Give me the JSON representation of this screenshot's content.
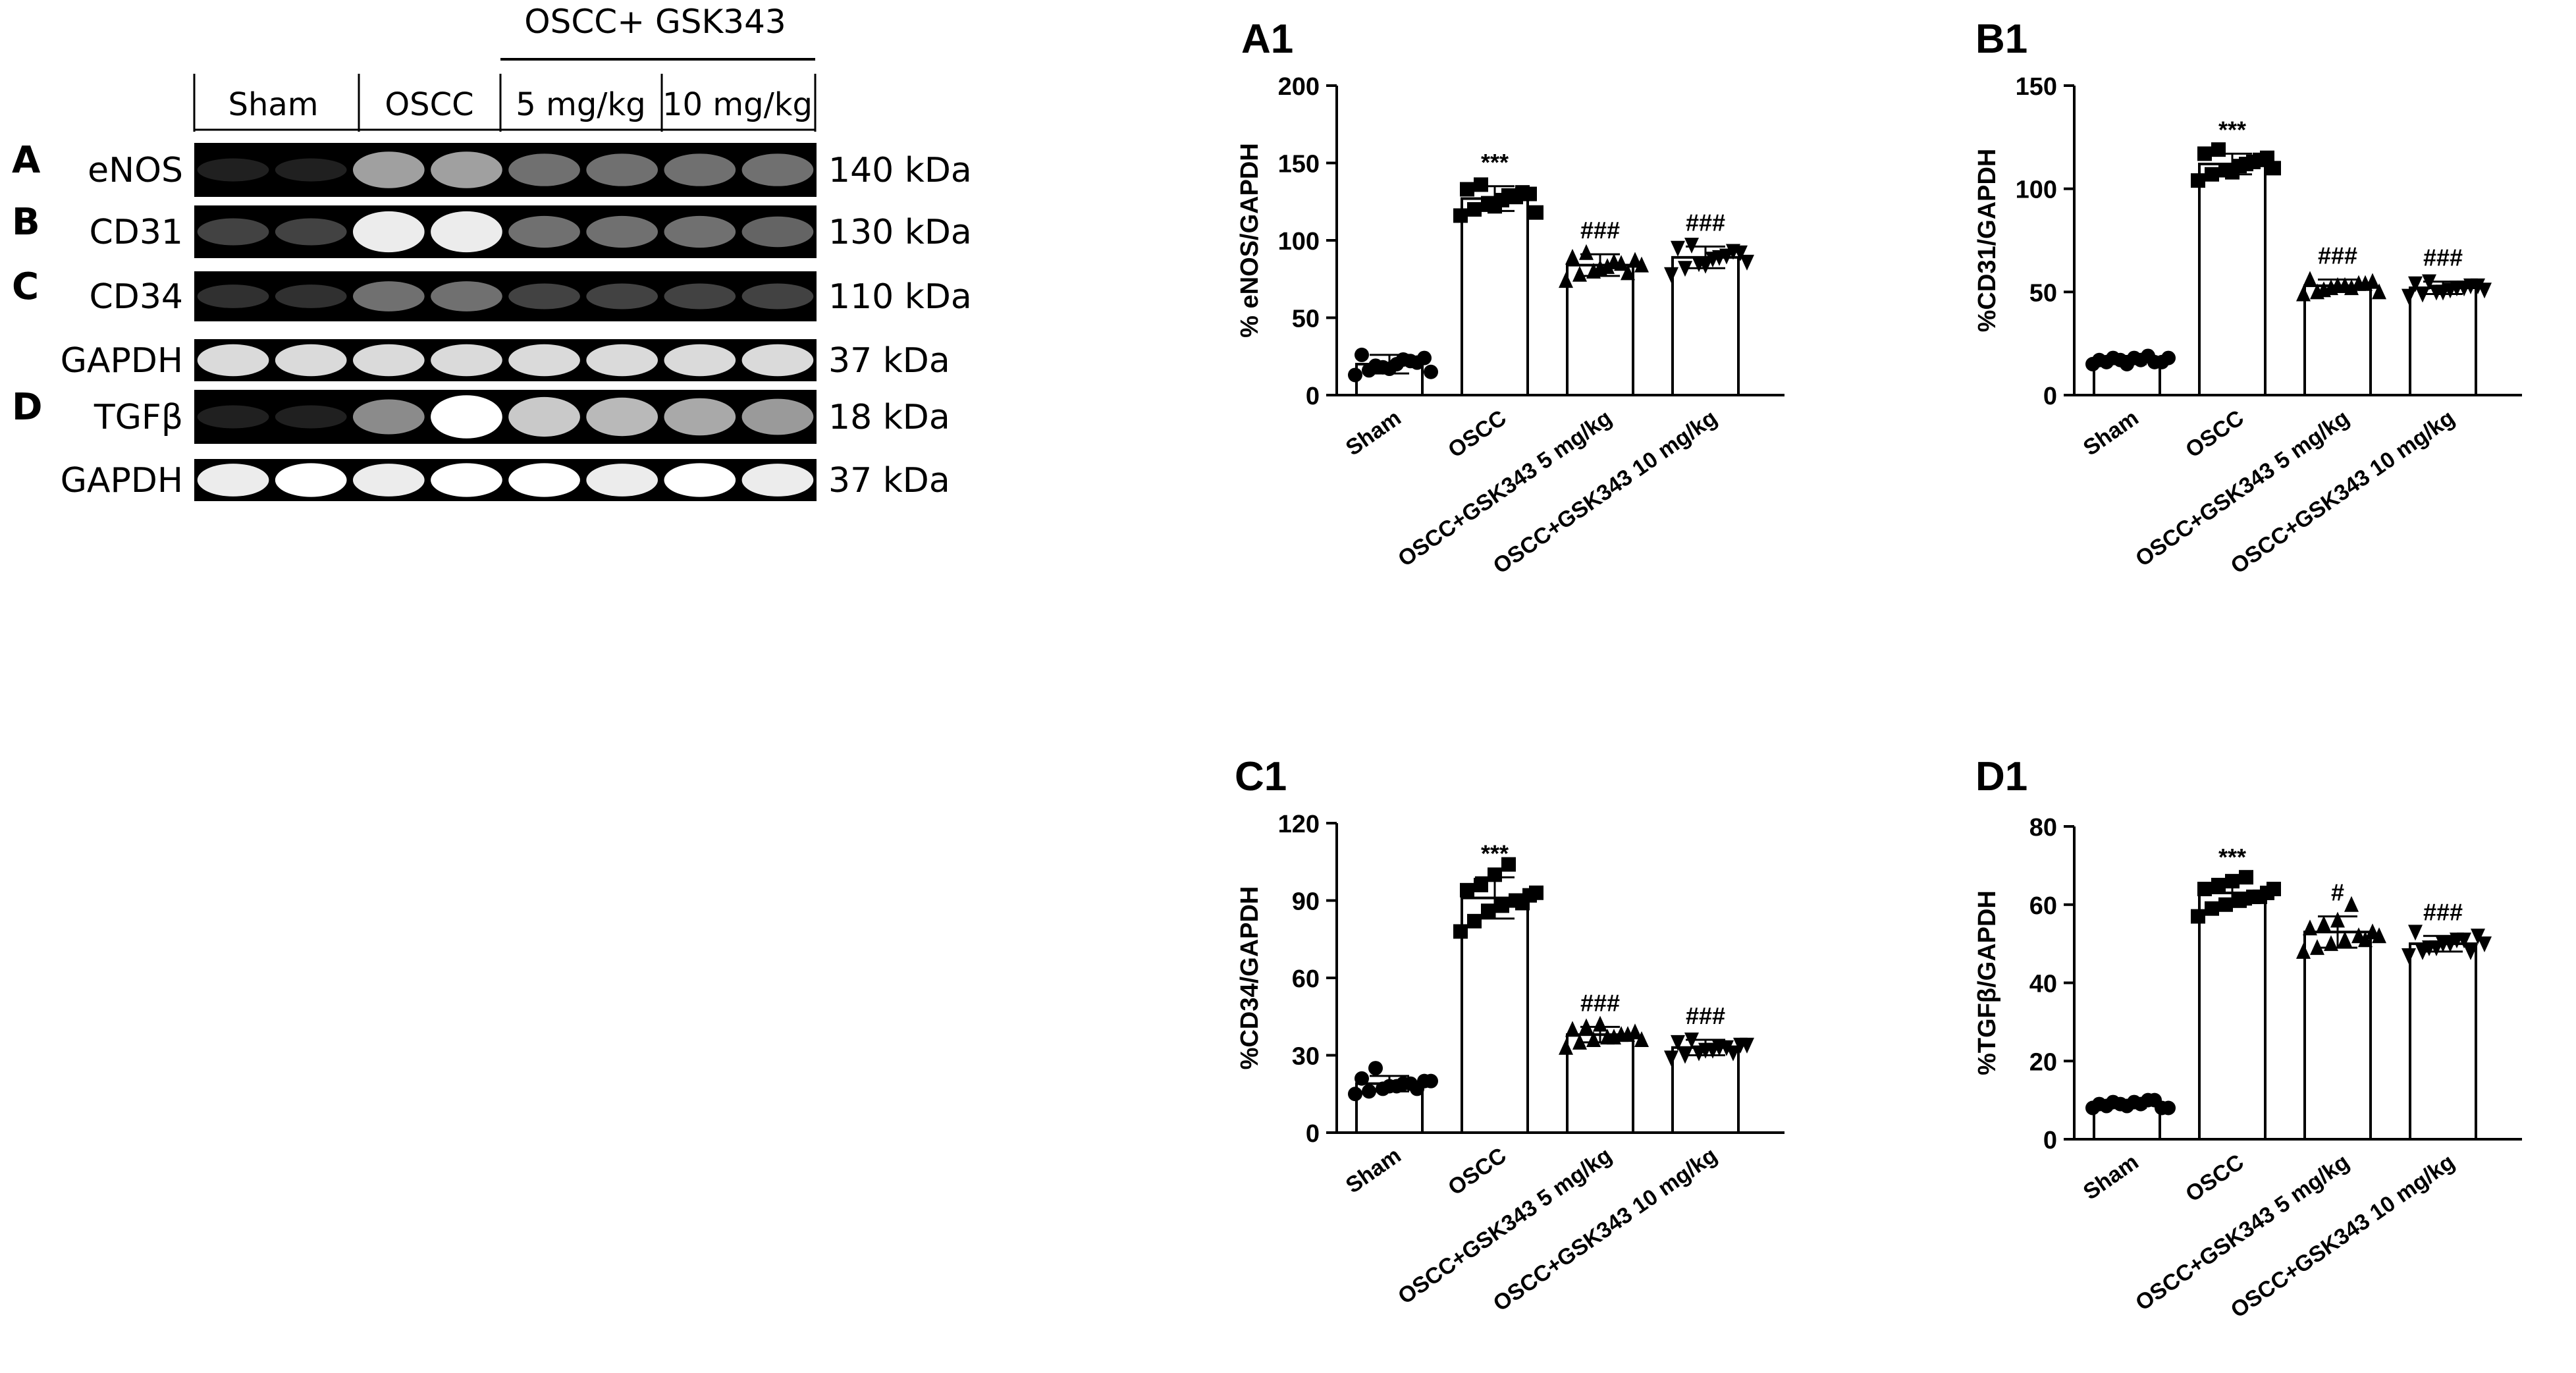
{
  "blot": {
    "title": "OSCC+ GSK343",
    "groups": [
      "Sham",
      "OSCC",
      "5 mg/kg",
      "10 mg/kg"
    ],
    "rows": [
      {
        "letter": "A",
        "protein": "eNOS",
        "size": "140 kDa",
        "intensity": [
          0.15,
          0.15,
          0.72,
          0.72,
          0.55,
          0.55,
          0.55,
          0.55
        ]
      },
      {
        "letter": "B",
        "protein": "CD31",
        "size": "130 kDa",
        "intensity": [
          0.35,
          0.35,
          0.95,
          0.95,
          0.55,
          0.55,
          0.55,
          0.5
        ]
      },
      {
        "letter": "C",
        "protein": "CD34",
        "size": "110 kDa",
        "intensity": [
          0.25,
          0.25,
          0.55,
          0.55,
          0.35,
          0.35,
          0.35,
          0.35
        ]
      },
      {
        "letter": "",
        "protein": "GAPDH",
        "size": "37 kDa",
        "intensity": [
          0.9,
          0.9,
          0.9,
          0.9,
          0.9,
          0.9,
          0.9,
          0.9
        ]
      },
      {
        "letter": "D",
        "protein": "TGFβ",
        "size": "18 kDa",
        "intensity": [
          0.15,
          0.15,
          0.65,
          1.0,
          0.85,
          0.8,
          0.75,
          0.7
        ]
      },
      {
        "letter": "",
        "protein": "GAPDH",
        "size": "37 kDa",
        "intensity": [
          0.95,
          1.0,
          0.95,
          1.0,
          1.0,
          0.95,
          1.0,
          0.95
        ]
      }
    ]
  },
  "chart_data": [
    {
      "type": "bar",
      "panel": "A1",
      "categories": [
        "Sham",
        "OSCC",
        "OSCC+GSK343 5 mg/kg",
        "OSCC+GSK343 10 mg/kg"
      ],
      "values": [
        20,
        127,
        84,
        89
      ],
      "errors": [
        6,
        8,
        7,
        7
      ],
      "markers": [
        "circle",
        "square",
        "triangle-up",
        "triangle-down"
      ],
      "points": [
        [
          13,
          16,
          18,
          20,
          22,
          24,
          26,
          19,
          17,
          23,
          21,
          15
        ],
        [
          116,
          120,
          124,
          126,
          128,
          130,
          133,
          136,
          122,
          129,
          131,
          118
        ],
        [
          74,
          78,
          80,
          83,
          85,
          87,
          89,
          92,
          82,
          86,
          79,
          84
        ],
        [
          78,
          82,
          85,
          88,
          90,
          92,
          95,
          97,
          84,
          89,
          93,
          86
        ]
      ],
      "significance": [
        "",
        "***",
        "###",
        "###"
      ],
      "ylabel": "% eNOS/GAPDH",
      "ylim": [
        0,
        200
      ],
      "yticks": [
        0,
        50,
        100,
        150,
        200
      ]
    },
    {
      "type": "bar",
      "panel": "B1",
      "categories": [
        "Sham",
        "OSCC",
        "OSCC+GSK343 5 mg/kg",
        "OSCC+GSK343 10 mg/kg"
      ],
      "values": [
        17,
        112,
        53,
        52
      ],
      "errors": [
        2,
        5,
        3,
        3
      ],
      "markers": [
        "circle",
        "square",
        "triangle-up",
        "triangle-down"
      ],
      "points": [
        [
          15,
          16,
          17,
          18,
          19,
          16,
          17,
          18,
          15,
          17,
          16,
          18
        ],
        [
          104,
          107,
          109,
          111,
          113,
          115,
          117,
          119,
          108,
          112,
          114,
          110
        ],
        [
          49,
          50,
          52,
          53,
          54,
          55,
          56,
          51,
          53,
          52,
          54,
          50
        ],
        [
          48,
          49,
          50,
          51,
          52,
          53,
          54,
          55,
          50,
          52,
          53,
          51
        ]
      ],
      "significance": [
        "",
        "***",
        "###",
        "###"
      ],
      "ylabel": "%CD31/GAPDH",
      "ylim": [
        0,
        150
      ],
      "yticks": [
        0,
        50,
        100,
        150
      ]
    },
    {
      "type": "bar",
      "panel": "C1",
      "categories": [
        "Sham",
        "OSCC",
        "OSCC+GSK343 5 mg/kg",
        "OSCC+GSK343 10 mg/kg"
      ],
      "values": [
        19,
        91,
        38,
        33
      ],
      "errors": [
        3,
        8,
        3,
        3
      ],
      "markers": [
        "circle",
        "square",
        "triangle-up",
        "triangle-down"
      ],
      "points": [
        [
          15,
          16,
          17,
          18,
          19,
          20,
          21,
          25,
          18,
          19,
          17,
          20
        ],
        [
          78,
          82,
          86,
          88,
          90,
          92,
          94,
          96,
          100,
          104,
          89,
          93
        ],
        [
          33,
          35,
          36,
          37,
          38,
          39,
          40,
          41,
          42,
          37,
          38,
          36
        ],
        [
          29,
          30,
          31,
          32,
          33,
          34,
          35,
          36,
          32,
          33,
          31,
          34
        ]
      ],
      "significance": [
        "",
        "***",
        "###",
        "###"
      ],
      "ylabel": "%CD34/GAPDH",
      "ylim": [
        0,
        120
      ],
      "yticks": [
        0,
        30,
        60,
        90,
        120
      ]
    },
    {
      "type": "bar",
      "panel": "D1",
      "categories": [
        "Sham",
        "OSCC",
        "OSCC+GSK343 5 mg/kg",
        "OSCC+GSK343 10 mg/kg"
      ],
      "values": [
        9,
        63,
        53,
        50
      ],
      "errors": [
        1,
        3,
        4,
        2
      ],
      "markers": [
        "circle",
        "square",
        "triangle-up",
        "triangle-down"
      ],
      "points": [
        [
          8,
          8.5,
          9,
          9.5,
          10,
          8,
          9,
          9.5,
          8.5,
          9,
          10,
          8
        ],
        [
          57,
          59,
          60,
          61,
          62,
          63,
          64,
          65,
          66,
          67,
          62,
          64
        ],
        [
          48,
          49,
          50,
          51,
          52,
          53,
          54,
          55,
          56,
          60,
          51,
          52
        ],
        [
          47,
          48,
          49,
          50,
          51,
          52,
          53,
          49,
          50,
          51,
          48,
          50
        ]
      ],
      "significance": [
        "",
        "***",
        "#",
        "###"
      ],
      "ylabel": "%TGFβ/GAPDH",
      "ylim": [
        0,
        80
      ],
      "yticks": [
        0,
        20,
        40,
        60,
        80
      ]
    }
  ]
}
